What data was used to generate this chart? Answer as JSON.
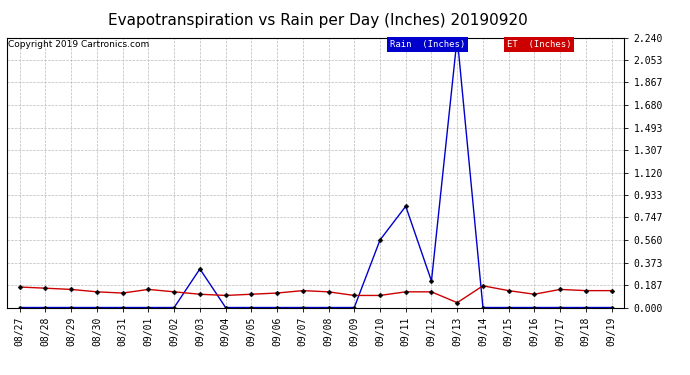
{
  "title": "Evapotranspiration vs Rain per Day (Inches) 20190920",
  "copyright": "Copyright 2019 Cartronics.com",
  "dates": [
    "08/27",
    "08/28",
    "08/29",
    "08/30",
    "08/31",
    "09/01",
    "09/02",
    "09/03",
    "09/04",
    "09/05",
    "09/06",
    "09/07",
    "09/08",
    "09/09",
    "09/10",
    "09/11",
    "09/12",
    "09/13",
    "09/14",
    "09/15",
    "09/16",
    "09/17",
    "09/18",
    "09/19"
  ],
  "rain_inches": [
    0.0,
    0.0,
    0.0,
    0.0,
    0.0,
    0.0,
    0.0,
    0.32,
    0.0,
    0.0,
    0.0,
    0.0,
    0.0,
    0.0,
    0.56,
    0.84,
    0.22,
    2.24,
    0.0,
    0.0,
    0.0,
    0.0,
    0.0,
    0.0
  ],
  "et_inches": [
    0.17,
    0.16,
    0.15,
    0.13,
    0.12,
    0.15,
    0.13,
    0.11,
    0.1,
    0.11,
    0.12,
    0.14,
    0.13,
    0.1,
    0.1,
    0.13,
    0.13,
    0.04,
    0.18,
    0.14,
    0.11,
    0.15,
    0.14,
    0.14
  ],
  "rain_color": "#0000cc",
  "et_color": "#cc0000",
  "background_color": "#ffffff",
  "grid_color": "#bbbbbb",
  "ylim": [
    0,
    2.24
  ],
  "yticks": [
    0.0,
    0.187,
    0.373,
    0.56,
    0.747,
    0.933,
    1.12,
    1.307,
    1.493,
    1.68,
    1.867,
    2.053,
    2.24
  ],
  "legend_rain_bg": "#0000cc",
  "legend_et_bg": "#cc0000",
  "legend_rain_text": "Rain  (Inches)",
  "legend_et_text": "ET  (Inches)",
  "title_fontsize": 11,
  "copyright_fontsize": 6.5,
  "tick_fontsize": 7
}
